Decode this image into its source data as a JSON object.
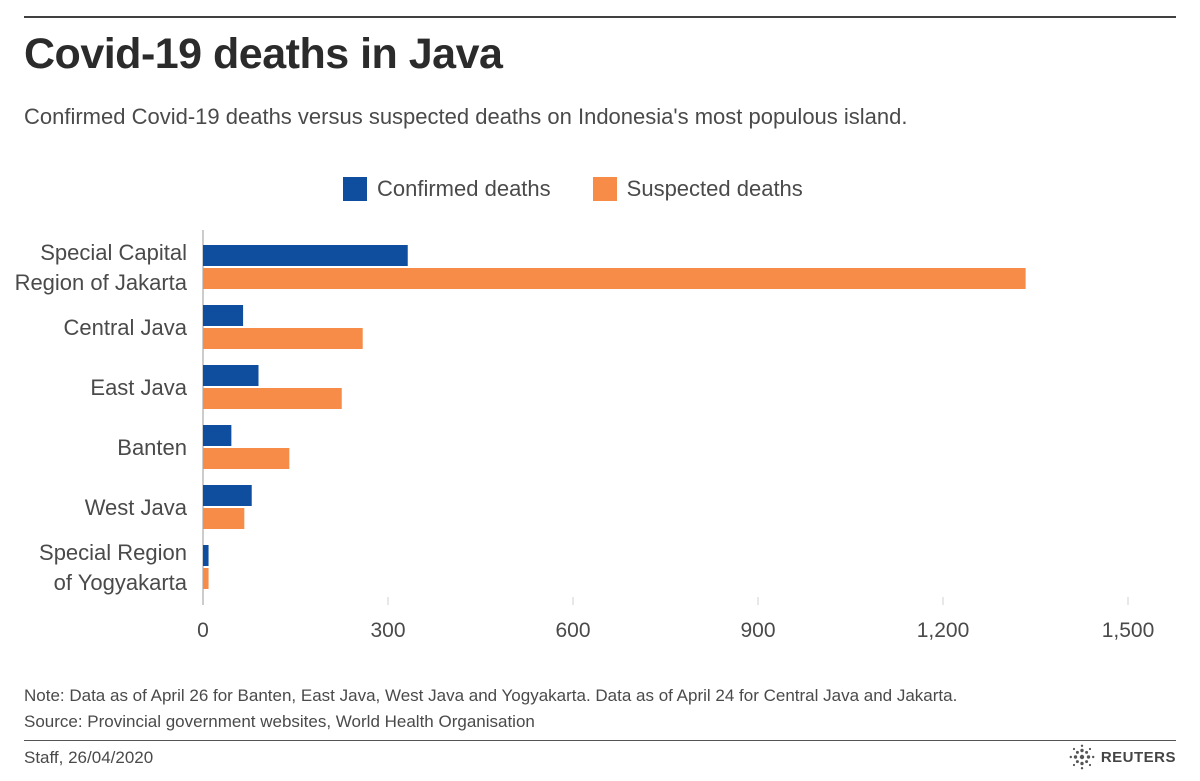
{
  "colors": {
    "confirmed": "#0f4d9e",
    "suspected": "#f78c48",
    "axis": "#999999",
    "grid": "#d0d0d0",
    "text": "#4a4a4a"
  },
  "chart_data": {
    "type": "bar",
    "orientation": "horizontal",
    "title": "Covid-19 deaths in Java",
    "subtitle": "Confirmed Covid-19 deaths versus suspected deaths on Indonesia's most populous island.",
    "categories": [
      [
        "Special Capital",
        "Region of Jakarta"
      ],
      [
        "Central Java"
      ],
      [
        "East Java"
      ],
      [
        "Banten"
      ],
      [
        "West Java"
      ],
      [
        "Special Region",
        "of Yogyakarta"
      ]
    ],
    "series": [
      {
        "name": "Confirmed deaths",
        "color": "#0f4d9e",
        "values": [
          332,
          65,
          90,
          46,
          79,
          9
        ]
      },
      {
        "name": "Suspected deaths",
        "color": "#f78c48",
        "values": [
          1334,
          259,
          225,
          140,
          67,
          9
        ]
      }
    ],
    "xlim": [
      0,
      1500
    ],
    "xticks": [
      0,
      300,
      600,
      900,
      1200,
      1500
    ],
    "xtick_labels": [
      "0",
      "300",
      "600",
      "900",
      "1,200",
      "1,500"
    ],
    "xlabel": "",
    "ylabel": "",
    "legend": "top-center",
    "grid": "vertical-ticks"
  },
  "footer": {
    "note": "Note: Data as of April 26 for Banten, East Java, West Java and Yogyakarta. Data as of April 24 for Central Java and Jakarta.",
    "source": "Source: Provincial government websites, World Health Organisation",
    "credit": "Staff, 26/04/2020",
    "logo": "REUTERS"
  }
}
